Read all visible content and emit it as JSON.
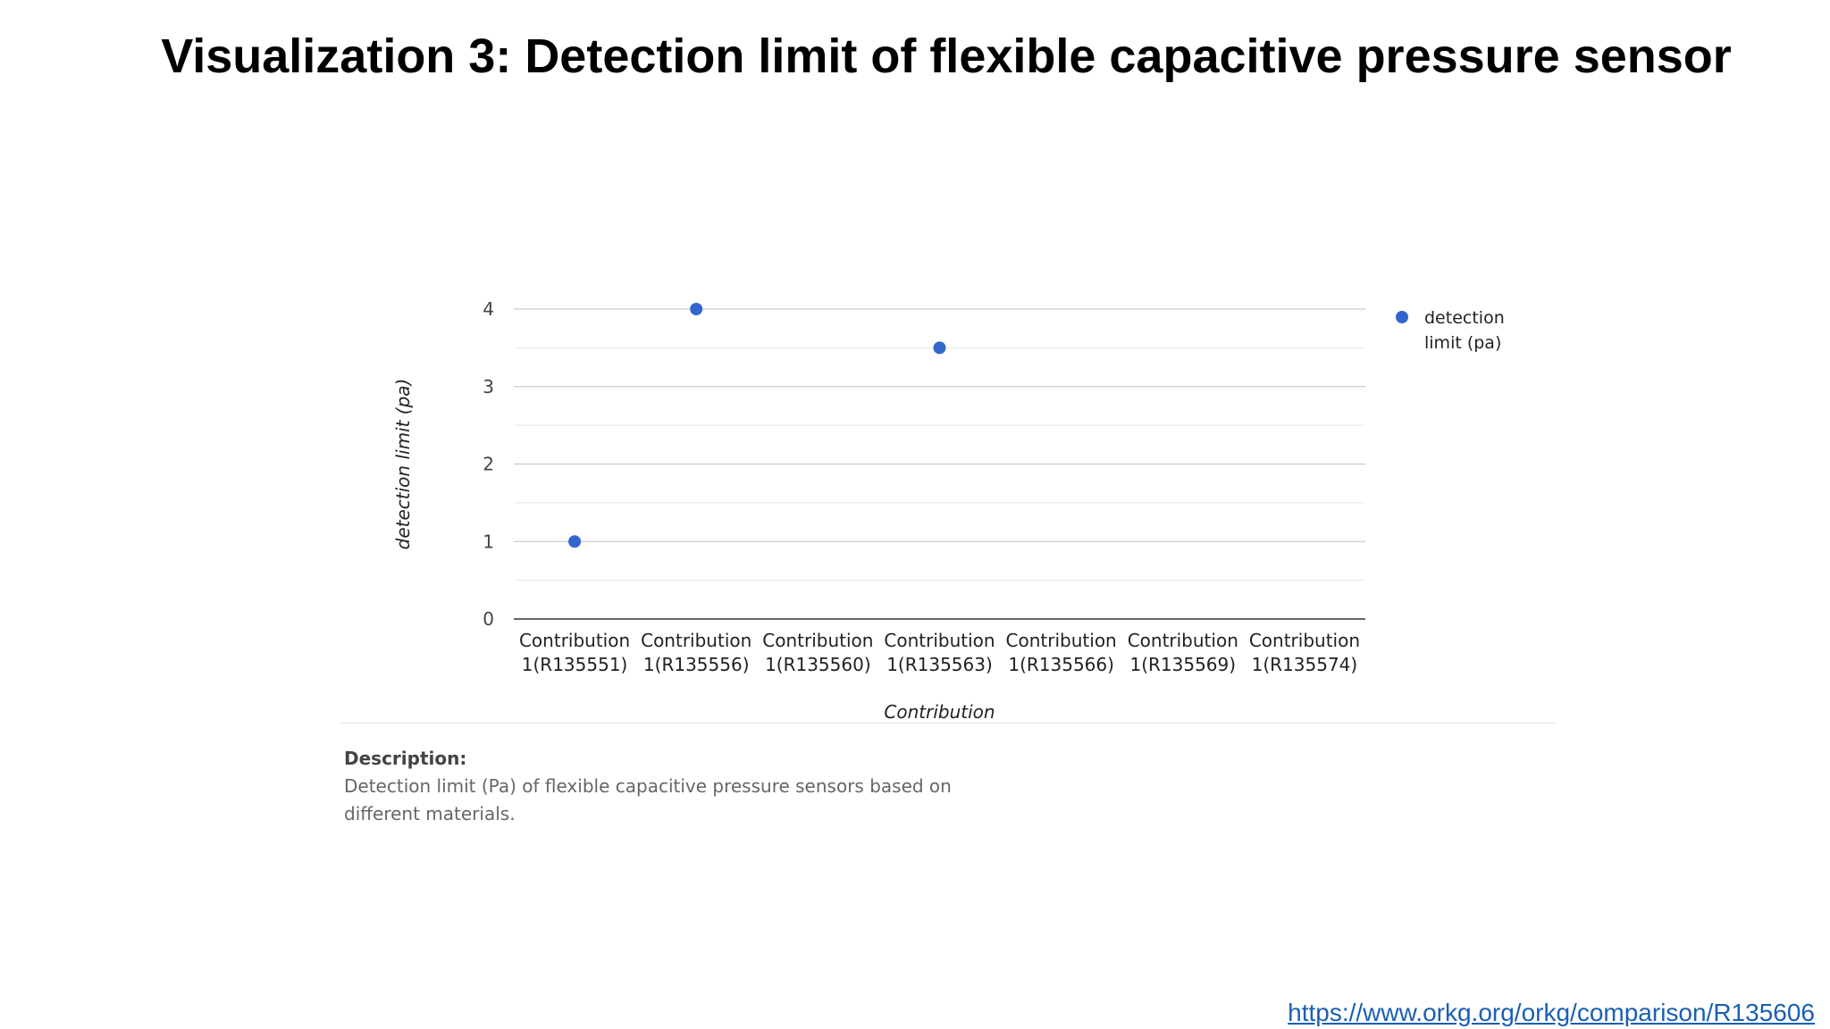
{
  "slide": {
    "title": "Visualization 3: Detection limit of flexible capacitive pressure sensor"
  },
  "chart_data": {
    "type": "scatter",
    "categories": [
      "Contribution 1(R135551)",
      "Contribution 1(R135556)",
      "Contribution 1(R135560)",
      "Contribution 1(R135563)",
      "Contribution 1(R135566)",
      "Contribution 1(R135569)",
      "Contribution 1(R135574)"
    ],
    "series": [
      {
        "name": "detection limit (pa)",
        "values": [
          1,
          4,
          null,
          3.5,
          null,
          null,
          null
        ],
        "color": "#3366cc"
      }
    ],
    "xlabel": "Contribution",
    "ylabel": "detection limit (pa)",
    "ylim": [
      0,
      4
    ],
    "yticks": [
      0,
      1,
      2,
      3,
      4
    ],
    "grid": true,
    "legend": "right"
  },
  "description": {
    "label": "Description:",
    "text": "Detection limit (Pa) of flexible capacitive pressure sensors based on different materials."
  },
  "source": {
    "url": "https://www.orkg.org/orkg/comparison/R135606"
  }
}
